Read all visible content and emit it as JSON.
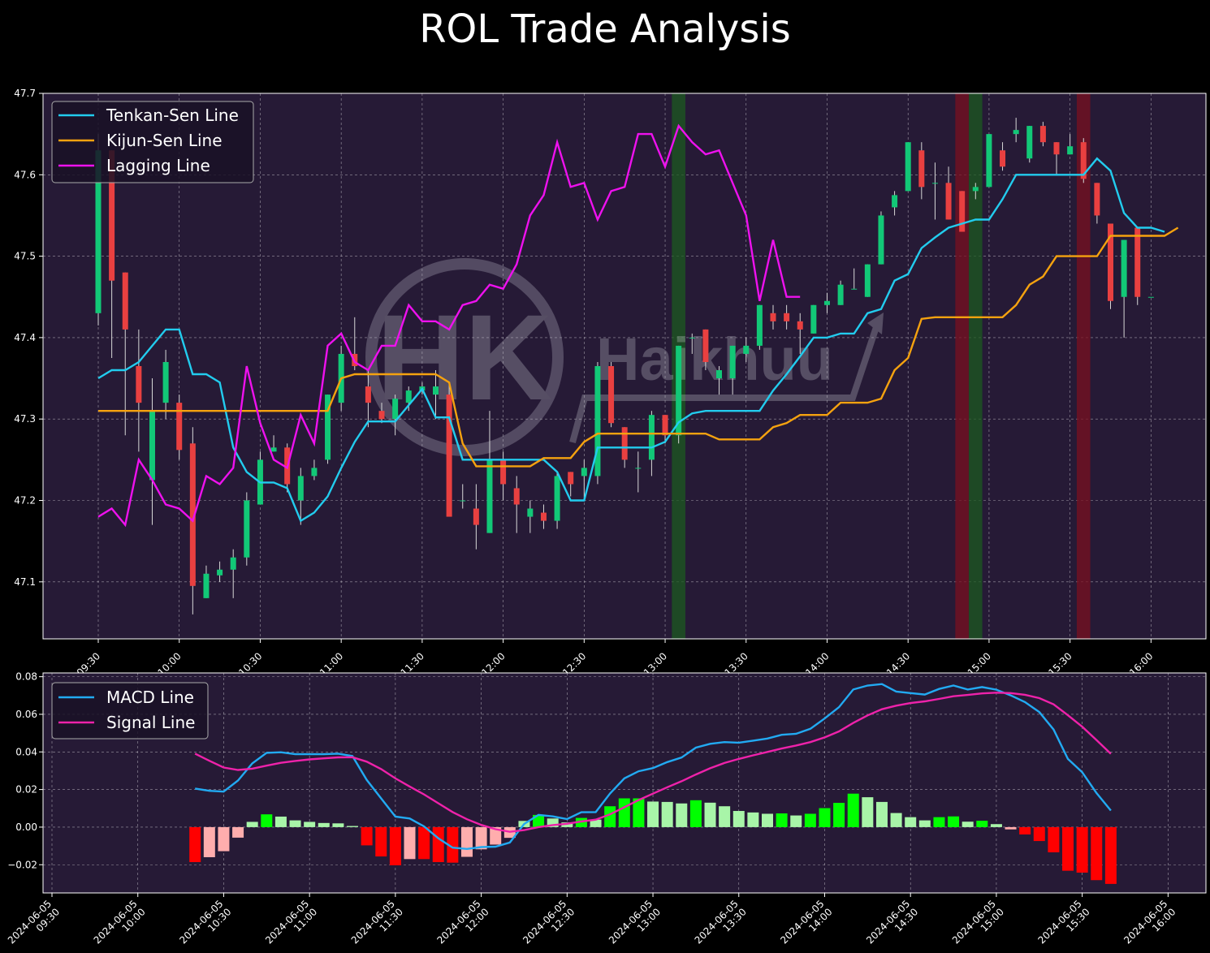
{
  "title": "ROL Trade Analysis",
  "watermark": {
    "mark": "HK",
    "text": "Haikhuu"
  },
  "colors": {
    "background": "#000000",
    "panel": "#261a36",
    "up_candle": "#12c877",
    "down_candle": "#e94040",
    "tenkan": "#22ccee",
    "kijun": "#f5a20f",
    "lagging": "#ee11ee",
    "macd": "#22aaf2",
    "signal": "#ee22aa",
    "hist_pos_strong": "#00ff00",
    "hist_pos_weak": "#a8f5a8",
    "hist_neg_strong": "#ff0000",
    "hist_neg_weak": "#ffadad",
    "buy_band": "#1c5a20",
    "sell_band": "#7a1020"
  },
  "chart_data": [
    {
      "type": "candlestick",
      "title": "ROL Trade Analysis",
      "ylim": [
        47.03,
        47.7
      ],
      "yticks": [
        "47.1",
        "47.2",
        "47.3",
        "47.4",
        "47.5",
        "47.6",
        "47.7"
      ],
      "xticks": [
        "09:30",
        "10:00",
        "10:30",
        "11:00",
        "11:30",
        "12:00",
        "12:30",
        "13:00",
        "13:30",
        "14:00",
        "14:30",
        "15:00",
        "15:30",
        "16:00"
      ],
      "x_interval_minutes": 5,
      "grid": true,
      "legend": {
        "position": "top-left",
        "entries": [
          "Tenkan-Sen Line",
          "Kijun-Sen Line",
          "Lagging Line"
        ]
      },
      "candles": [
        [
          47.43,
          47.65,
          47.415,
          47.63
        ],
        [
          47.63,
          47.63,
          47.375,
          47.47
        ],
        [
          47.48,
          47.48,
          47.28,
          47.41
        ],
        [
          47.365,
          47.41,
          47.26,
          47.32
        ],
        [
          47.225,
          47.35,
          47.17,
          47.31
        ],
        [
          47.32,
          47.385,
          47.3,
          47.37
        ],
        [
          47.32,
          47.33,
          47.25,
          47.262
        ],
        [
          47.27,
          47.29,
          47.06,
          47.095
        ],
        [
          47.08,
          47.12,
          47.08,
          47.11
        ],
        [
          47.108,
          47.125,
          47.1,
          47.115
        ],
        [
          47.115,
          47.14,
          47.08,
          47.13
        ],
        [
          47.13,
          47.21,
          47.12,
          47.2
        ],
        [
          47.195,
          47.26,
          47.195,
          47.25
        ],
        [
          47.26,
          47.28,
          47.26,
          47.265
        ],
        [
          47.265,
          47.27,
          47.21,
          47.22
        ],
        [
          47.2,
          47.24,
          47.17,
          47.23
        ],
        [
          47.23,
          47.25,
          47.225,
          47.24
        ],
        [
          47.25,
          47.33,
          47.245,
          47.33
        ],
        [
          47.32,
          47.39,
          47.31,
          47.38
        ],
        [
          47.38,
          47.425,
          47.36,
          47.365
        ],
        [
          47.34,
          47.36,
          47.29,
          47.32
        ],
        [
          47.31,
          47.32,
          47.295,
          47.3
        ],
        [
          47.3,
          47.33,
          47.28,
          47.325
        ],
        [
          47.32,
          47.34,
          47.31,
          47.335
        ],
        [
          47.335,
          47.345,
          47.33,
          47.34
        ],
        [
          47.33,
          47.36,
          47.3,
          47.34
        ],
        [
          47.33,
          47.345,
          47.18,
          47.18
        ],
        [
          47.2,
          47.22,
          47.19,
          47.2
        ],
        [
          47.19,
          47.22,
          47.14,
          47.17
        ],
        [
          47.16,
          47.31,
          47.16,
          47.25
        ],
        [
          47.25,
          47.26,
          47.2,
          47.22
        ],
        [
          47.215,
          47.23,
          47.16,
          47.195
        ],
        [
          47.18,
          47.2,
          47.16,
          47.19
        ],
        [
          47.185,
          47.195,
          47.165,
          47.175
        ],
        [
          47.175,
          47.235,
          47.165,
          47.23
        ],
        [
          47.235,
          47.235,
          47.205,
          47.22
        ],
        [
          47.23,
          47.25,
          47.2,
          47.24
        ],
        [
          47.23,
          47.37,
          47.22,
          47.365
        ],
        [
          47.365,
          47.37,
          47.29,
          47.295
        ],
        [
          47.29,
          47.29,
          47.24,
          47.25
        ],
        [
          47.24,
          47.26,
          47.21,
          47.24
        ],
        [
          47.25,
          47.31,
          47.23,
          47.305
        ],
        [
          47.305,
          47.305,
          47.27,
          47.28
        ],
        [
          47.28,
          47.39,
          47.27,
          47.39
        ],
        [
          47.4,
          47.405,
          47.38,
          47.4
        ],
        [
          47.41,
          47.41,
          47.36,
          47.37
        ],
        [
          47.35,
          47.365,
          47.33,
          47.36
        ],
        [
          47.35,
          47.39,
          47.33,
          47.39
        ],
        [
          47.38,
          47.4,
          47.37,
          47.39
        ],
        [
          47.39,
          47.44,
          47.385,
          47.44
        ],
        [
          47.43,
          47.44,
          47.41,
          47.42
        ],
        [
          47.43,
          47.44,
          47.41,
          47.42
        ],
        [
          47.42,
          47.43,
          47.38,
          47.41
        ],
        [
          47.405,
          47.44,
          47.405,
          47.44
        ],
        [
          47.44,
          47.455,
          47.43,
          47.445
        ],
        [
          47.44,
          47.47,
          47.44,
          47.465
        ],
        [
          47.46,
          47.485,
          47.46,
          47.46
        ],
        [
          47.45,
          47.49,
          47.45,
          47.49
        ],
        [
          47.49,
          47.555,
          47.49,
          47.55
        ],
        [
          47.56,
          47.58,
          47.55,
          47.575
        ],
        [
          47.58,
          47.64,
          47.58,
          47.64
        ],
        [
          47.63,
          47.64,
          47.57,
          47.585
        ],
        [
          47.59,
          47.615,
          47.545,
          47.59
        ],
        [
          47.59,
          47.61,
          47.545,
          47.545
        ],
        [
          47.58,
          47.58,
          47.53,
          47.53
        ],
        [
          47.58,
          47.59,
          47.57,
          47.585
        ],
        [
          47.585,
          47.65,
          47.585,
          47.65
        ],
        [
          47.63,
          47.64,
          47.605,
          47.61
        ],
        [
          47.65,
          47.67,
          47.64,
          47.655
        ],
        [
          47.62,
          47.66,
          47.615,
          47.66
        ],
        [
          47.66,
          47.665,
          47.635,
          47.64
        ],
        [
          47.64,
          47.64,
          47.6,
          47.625
        ],
        [
          47.625,
          47.65,
          47.625,
          47.635
        ],
        [
          47.64,
          47.645,
          47.59,
          47.595
        ],
        [
          47.59,
          47.59,
          47.54,
          47.55
        ],
        [
          47.54,
          47.54,
          47.435,
          47.445
        ],
        [
          47.45,
          47.52,
          47.4,
          47.52
        ],
        [
          47.535,
          47.535,
          47.44,
          47.45
        ],
        [
          47.45,
          47.45,
          47.45,
          47.45
        ]
      ],
      "series": [
        {
          "name": "Tenkan-Sen Line",
          "values": [
            47.35,
            47.36,
            47.36,
            47.37,
            47.39,
            47.41,
            47.41,
            47.355,
            47.355,
            47.345,
            47.265,
            47.235,
            47.222,
            47.222,
            47.215,
            47.175,
            47.185,
            47.205,
            47.24,
            47.272,
            47.297,
            47.297,
            47.297,
            47.317,
            47.337,
            47.302,
            47.302,
            47.25,
            47.25,
            47.25,
            47.25,
            47.25,
            47.25,
            47.25,
            47.235,
            47.2,
            47.2,
            47.265,
            47.265,
            47.265,
            47.265,
            47.265,
            47.272,
            47.296,
            47.307,
            47.31,
            47.31,
            47.31,
            47.31,
            47.31,
            47.335,
            47.355,
            47.377,
            47.4,
            47.4,
            47.405,
            47.405,
            47.43,
            47.435,
            47.47,
            47.478,
            47.51,
            47.523,
            47.535,
            47.54,
            47.545,
            47.545,
            47.57,
            47.6,
            47.6,
            47.6,
            47.6,
            47.6,
            47.6,
            47.62,
            47.605,
            47.553,
            47.535,
            47.535,
            47.53
          ]
        },
        {
          "name": "Kijun-Sen Line",
          "values": [
            47.31,
            47.31,
            47.31,
            47.31,
            47.31,
            47.31,
            47.31,
            47.31,
            47.31,
            47.31,
            47.31,
            47.31,
            47.31,
            47.31,
            47.31,
            47.31,
            47.31,
            47.31,
            47.35,
            47.355,
            47.355,
            47.355,
            47.355,
            47.355,
            47.355,
            47.355,
            47.345,
            47.27,
            47.242,
            47.242,
            47.242,
            47.242,
            47.242,
            47.252,
            47.252,
            47.252,
            47.272,
            47.282,
            47.282,
            47.282,
            47.282,
            47.282,
            47.282,
            47.282,
            47.282,
            47.282,
            47.275,
            47.275,
            47.275,
            47.275,
            47.29,
            47.295,
            47.305,
            47.305,
            47.305,
            47.32,
            47.32,
            47.32,
            47.325,
            47.36,
            47.375,
            47.423,
            47.425,
            47.425,
            47.425,
            47.425,
            47.425,
            47.425,
            47.44,
            47.465,
            47.475,
            47.5,
            47.5,
            47.5,
            47.5,
            47.525,
            47.525,
            47.525,
            47.525,
            47.525,
            47.535
          ]
        },
        {
          "name": "Lagging Line",
          "values": [
            47.18,
            47.19,
            47.17,
            47.25,
            47.225,
            47.195,
            47.19,
            47.175,
            47.23,
            47.22,
            47.24,
            47.365,
            47.295,
            47.25,
            47.24,
            47.305,
            47.27,
            47.39,
            47.405,
            47.37,
            47.36,
            47.39,
            47.39,
            47.44,
            47.42,
            47.42,
            47.41,
            47.44,
            47.445,
            47.465,
            47.46,
            47.49,
            47.55,
            47.575,
            47.64,
            47.585,
            47.59,
            47.545,
            47.58,
            47.585,
            47.65,
            47.65,
            47.61,
            47.66,
            47.64,
            47.625,
            47.63,
            47.59,
            47.55,
            47.445,
            47.52,
            47.45,
            47.45
          ]
        }
      ],
      "signal_bands": [
        {
          "type": "buy",
          "time": "13:05"
        },
        {
          "type": "sell",
          "time": "14:50"
        },
        {
          "type": "buy",
          "time": "14:55"
        },
        {
          "type": "sell",
          "time": "15:35"
        }
      ]
    },
    {
      "type": "line",
      "ylim": [
        -0.035,
        0.082
      ],
      "yticks": [
        "−0.02",
        "0.00",
        "0.02",
        "0.04",
        "0.06",
        "0.08"
      ],
      "xticks": [
        [
          "2024-06-05",
          "09:30"
        ],
        [
          "2024-06-05",
          "10:00"
        ],
        [
          "2024-06-05",
          "10:30"
        ],
        [
          "2024-06-05",
          "11:00"
        ],
        [
          "2024-06-05",
          "11:30"
        ],
        [
          "2024-06-05",
          "12:00"
        ],
        [
          "2024-06-05",
          "12:30"
        ],
        [
          "2024-06-05",
          "13:00"
        ],
        [
          "2024-06-05",
          "13:30"
        ],
        [
          "2024-06-05",
          "14:00"
        ],
        [
          "2024-06-05",
          "14:30"
        ],
        [
          "2024-06-05",
          "15:00"
        ],
        [
          "2024-06-05",
          "15:30"
        ],
        [
          "2024-06-05",
          "16:00"
        ]
      ],
      "grid": true,
      "legend": {
        "position": "top-left",
        "entries": [
          "MACD Line",
          "Signal Line"
        ]
      },
      "start_index": 10,
      "series": [
        {
          "name": "MACD Line",
          "values": [
            0.0205,
            0.0193,
            0.0189,
            0.0248,
            0.0339,
            0.0395,
            0.0398,
            0.0388,
            0.0388,
            0.0388,
            0.0391,
            0.0378,
            0.0251,
            0.0153,
            0.0056,
            0.0046,
            0.0004,
            -0.0059,
            -0.0109,
            -0.0116,
            -0.0106,
            -0.0104,
            -0.0082,
            0.0017,
            0.0065,
            0.0057,
            0.0043,
            0.0079,
            0.008,
            0.0179,
            0.0259,
            0.0297,
            0.0314,
            0.0346,
            0.037,
            0.0423,
            0.0443,
            0.0452,
            0.0449,
            0.046,
            0.0471,
            0.0491,
            0.0496,
            0.0523,
            0.0578,
            0.0638,
            0.0732,
            0.0753,
            0.0761,
            0.0721,
            0.0713,
            0.0705,
            0.0735,
            0.0753,
            0.0732,
            0.0745,
            0.0731,
            0.0701,
            0.0665,
            0.0612,
            0.0519,
            0.0363,
            0.0292,
            0.0181,
            0.0088
          ]
        },
        {
          "name": "Signal Line",
          "values": [
            0.0391,
            0.0353,
            0.0317,
            0.0304,
            0.0311,
            0.0327,
            0.0342,
            0.0352,
            0.036,
            0.0366,
            0.0371,
            0.0372,
            0.0348,
            0.0309,
            0.0259,
            0.0216,
            0.0174,
            0.0127,
            0.008,
            0.0042,
            0.0012,
            -0.0011,
            -0.0025,
            -0.0016,
            -0.0,
            0.0011,
            0.0018,
            0.003,
            0.004,
            0.0068,
            0.0106,
            0.0144,
            0.0178,
            0.0212,
            0.0244,
            0.028,
            0.0313,
            0.0341,
            0.0363,
            0.0382,
            0.04,
            0.0418,
            0.0434,
            0.0452,
            0.0477,
            0.0509,
            0.0554,
            0.0594,
            0.0627,
            0.0646,
            0.066,
            0.0669,
            0.0682,
            0.0696,
            0.0703,
            0.0711,
            0.0715,
            0.0713,
            0.0704,
            0.0686,
            0.0653,
            0.0595,
            0.0534,
            0.0463,
            0.039
          ]
        },
        {
          "name": "Histogram",
          "values": [
            -0.0186,
            -0.016,
            -0.0128,
            -0.0056,
            0.0028,
            0.0068,
            0.0056,
            0.0036,
            0.0028,
            0.0022,
            0.002,
            0.0006,
            -0.0097,
            -0.0156,
            -0.0203,
            -0.017,
            -0.017,
            -0.0186,
            -0.0189,
            -0.0158,
            -0.0118,
            -0.0093,
            -0.0057,
            0.0033,
            0.0065,
            0.0046,
            0.0025,
            0.0049,
            0.004,
            0.0111,
            0.0153,
            0.0153,
            0.0136,
            0.0134,
            0.0126,
            0.0143,
            0.013,
            0.0111,
            0.0086,
            0.0078,
            0.0071,
            0.0073,
            0.0062,
            0.0071,
            0.0101,
            0.0129,
            0.0178,
            0.0159,
            0.0134,
            0.0075,
            0.0053,
            0.0036,
            0.0053,
            0.0057,
            0.0029,
            0.0034,
            0.0016,
            -0.0012,
            -0.0039,
            -0.0074,
            -0.0134,
            -0.0232,
            -0.0242,
            -0.0282,
            -0.0302
          ]
        }
      ]
    }
  ]
}
